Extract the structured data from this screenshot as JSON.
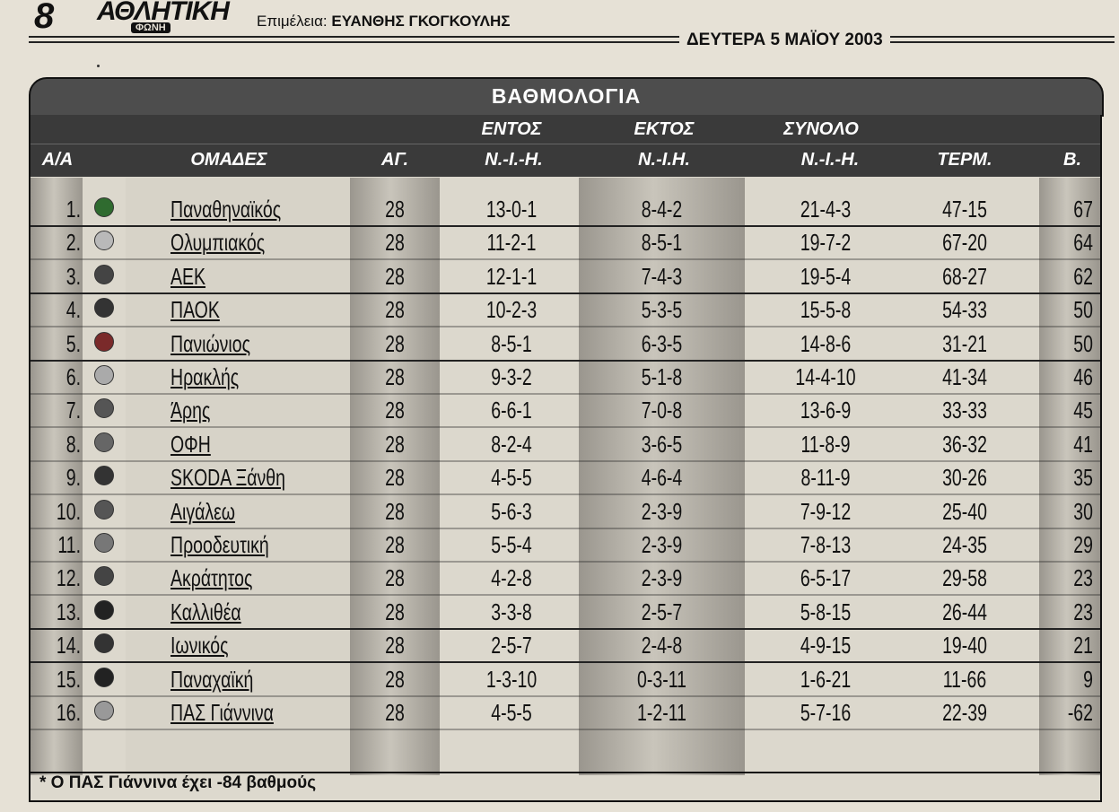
{
  "masthead": {
    "page_number": "8",
    "logo": "ΑΘΛΗΤΙΚΗ",
    "logo_sub": "ΦΩΝΗ",
    "editor_prefix": "Επιμέλεια: ",
    "editor_name": "ΕΥΑΝΘΗΣ ΓΚΟΓΚΟΥΛΗΣ",
    "date": "ΔΕΥΤΕΡΑ 5 ΜΑΪΟΥ 2003"
  },
  "table": {
    "title": "ΒΑΘΜΟΛΟΓΙΑ",
    "group_headers": {
      "home": "ΕΝΤΟΣ",
      "away": "ΕΚΤΟΣ",
      "total": "ΣΥΝΟΛΟ"
    },
    "columns": {
      "pos": "Α/Α",
      "team": "ΟΜΑΔΕΣ",
      "played": "ΑΓ.",
      "home": "Ν.-Ι.-Η.",
      "away": "Ν.-Ι.Η.",
      "total": "Ν.-Ι.-Η.",
      "goals": "ΤΕΡΜ.",
      "points": "Β."
    },
    "rows": [
      {
        "pos": "1.",
        "team": "Παναθηναϊκός",
        "played": "28",
        "home": "13-0-1",
        "away": "8-4-2",
        "total": "21-4-3",
        "goals": "47-15",
        "points": "67"
      },
      {
        "pos": "2.",
        "team": "Ολυμπιακός",
        "played": "28",
        "home": "11-2-1",
        "away": "8-5-1",
        "total": "19-7-2",
        "goals": "67-20",
        "points": "64"
      },
      {
        "pos": "3.",
        "team": "ΑΕΚ",
        "played": "28",
        "home": "12-1-1",
        "away": "7-4-3",
        "total": "19-5-4",
        "goals": "68-27",
        "points": "62"
      },
      {
        "pos": "4.",
        "team": "ΠΑΟΚ",
        "played": "28",
        "home": "10-2-3",
        "away": "5-3-5",
        "total": "15-5-8",
        "goals": "54-33",
        "points": "50"
      },
      {
        "pos": "5.",
        "team": "Πανιώνιος",
        "played": "28",
        "home": "8-5-1",
        "away": "6-3-5",
        "total": "14-8-6",
        "goals": "31-21",
        "points": "50"
      },
      {
        "pos": "6.",
        "team": "Ηρακλής",
        "played": "28",
        "home": "9-3-2",
        "away": "5-1-8",
        "total": "14-4-10",
        "goals": "41-34",
        "points": "46"
      },
      {
        "pos": "7.",
        "team": "Άρης",
        "played": "28",
        "home": "6-6-1",
        "away": "7-0-8",
        "total": "13-6-9",
        "goals": "33-33",
        "points": "45"
      },
      {
        "pos": "8.",
        "team": "ΟΦΗ",
        "played": "28",
        "home": "8-2-4",
        "away": "3-6-5",
        "total": "11-8-9",
        "goals": "36-32",
        "points": "41"
      },
      {
        "pos": "9.",
        "team": "SKODA Ξάνθη",
        "played": "28",
        "home": "4-5-5",
        "away": "4-6-4",
        "total": "8-11-9",
        "goals": "30-26",
        "points": "35"
      },
      {
        "pos": "10.",
        "team": "Αιγάλεω",
        "played": "28",
        "home": "5-6-3",
        "away": "2-3-9",
        "total": "7-9-12",
        "goals": "25-40",
        "points": "30"
      },
      {
        "pos": "11.",
        "team": "Προοδευτική",
        "played": "28",
        "home": "5-5-4",
        "away": "2-3-9",
        "total": "7-8-13",
        "goals": "24-35",
        "points": "29"
      },
      {
        "pos": "12.",
        "team": "Ακράτητος",
        "played": "28",
        "home": "4-2-8",
        "away": "2-3-9",
        "total": "6-5-17",
        "goals": "29-58",
        "points": "23"
      },
      {
        "pos": "13.",
        "team": "Καλλιθέα",
        "played": "28",
        "home": "3-3-8",
        "away": "2-5-7",
        "total": "5-8-15",
        "goals": "26-44",
        "points": "23"
      },
      {
        "pos": "14.",
        "team": "Ιωνικός",
        "played": "28",
        "home": "2-5-7",
        "away": "2-4-8",
        "total": "4-9-15",
        "goals": "19-40",
        "points": "21"
      },
      {
        "pos": "15.",
        "team": "Παναχαϊκή",
        "played": "28",
        "home": "1-3-10",
        "away": "0-3-11",
        "total": "1-6-21",
        "goals": "11-66",
        "points": "9"
      },
      {
        "pos": "16.",
        "team": "ΠΑΣ Γιάννινα",
        "played": "28",
        "home": "4-5-5",
        "away": "1-2-11",
        "total": "5-7-16",
        "goals": "22-39",
        "points": "-62"
      }
    ],
    "footnote": "* Ο ΠΑΣ Γιάννινα έχει -84 βαθμούς"
  }
}
